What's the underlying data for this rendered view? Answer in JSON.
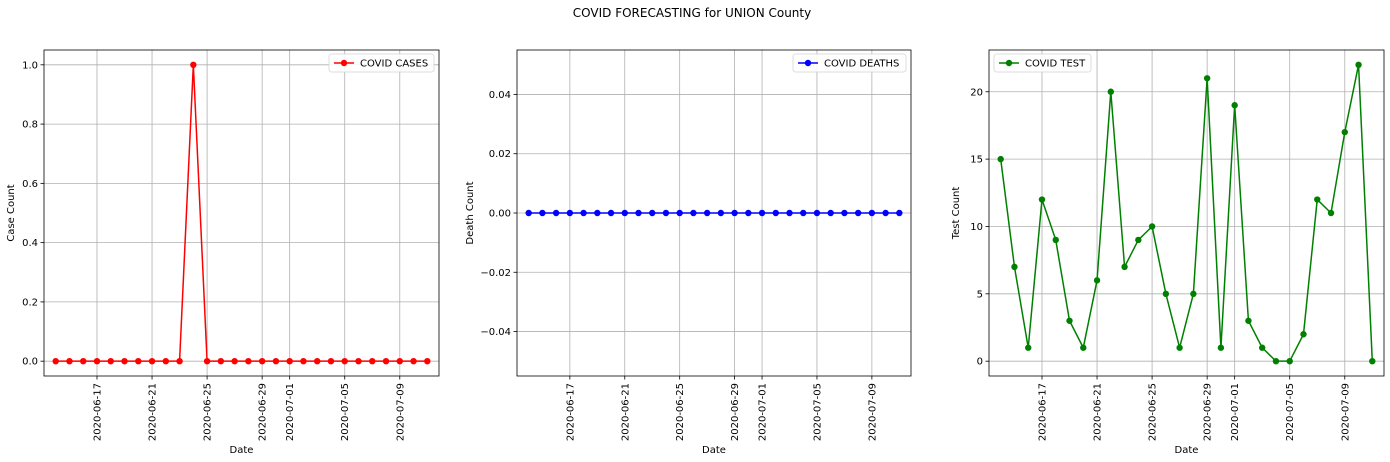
{
  "figure": {
    "title": "COVID FORECASTING for UNION County"
  },
  "chart_data": [
    {
      "type": "line",
      "xlabel": "Date",
      "ylabel": "Case Count",
      "x_tick_labels": [
        "2020-06-17",
        "2020-06-21",
        "2020-06-25",
        "2020-06-29",
        "2020-07-01",
        "2020-07-05",
        "2020-07-09"
      ],
      "x_tick_dates": [
        "2020-06-17",
        "2020-06-21",
        "2020-06-25",
        "2020-06-29",
        "2020-07-01",
        "2020-07-05",
        "2020-07-09"
      ],
      "x_start": "2020-06-14",
      "y_tick_labels": [
        "0.0",
        "0.2",
        "0.4",
        "0.6",
        "0.8",
        "1.0"
      ],
      "y_ticks": [
        0,
        0.2,
        0.4,
        0.6,
        0.8,
        1.0
      ],
      "ylim": [
        -0.05,
        1.05
      ],
      "grid": true,
      "legend_position": "upper right",
      "color": "#ff0000",
      "series": [
        {
          "name": "COVID CASES",
          "x": [
            "2020-06-14",
            "2020-06-15",
            "2020-06-16",
            "2020-06-17",
            "2020-06-18",
            "2020-06-19",
            "2020-06-20",
            "2020-06-21",
            "2020-06-22",
            "2020-06-23",
            "2020-06-24",
            "2020-06-25",
            "2020-06-26",
            "2020-06-27",
            "2020-06-28",
            "2020-06-29",
            "2020-06-30",
            "2020-07-01",
            "2020-07-02",
            "2020-07-03",
            "2020-07-04",
            "2020-07-05",
            "2020-07-06",
            "2020-07-07",
            "2020-07-08",
            "2020-07-09",
            "2020-07-10",
            "2020-07-11"
          ],
          "values": [
            0,
            0,
            0,
            0,
            0,
            0,
            0,
            0,
            0,
            0,
            1,
            0,
            0,
            0,
            0,
            0,
            0,
            0,
            0,
            0,
            0,
            0,
            0,
            0,
            0,
            0,
            0,
            0
          ]
        }
      ]
    },
    {
      "type": "line",
      "xlabel": "Date",
      "ylabel": "Death Count",
      "x_tick_labels": [
        "2020-06-17",
        "2020-06-21",
        "2020-06-25",
        "2020-06-29",
        "2020-07-01",
        "2020-07-05",
        "2020-07-09"
      ],
      "x_tick_dates": [
        "2020-06-17",
        "2020-06-21",
        "2020-06-25",
        "2020-06-29",
        "2020-07-01",
        "2020-07-05",
        "2020-07-09"
      ],
      "x_start": "2020-06-14",
      "y_tick_labels": [
        "0.04",
        "0.02",
        "0.00",
        "−0.02",
        "−0.04"
      ],
      "y_ticks": [
        0.04,
        0.02,
        0,
        -0.02,
        -0.04
      ],
      "ylim": [
        -0.055,
        0.055
      ],
      "grid": true,
      "legend_position": "upper right",
      "color": "#0000ff",
      "series": [
        {
          "name": "COVID DEATHS",
          "x": [
            "2020-06-14",
            "2020-06-15",
            "2020-06-16",
            "2020-06-17",
            "2020-06-18",
            "2020-06-19",
            "2020-06-20",
            "2020-06-21",
            "2020-06-22",
            "2020-06-23",
            "2020-06-24",
            "2020-06-25",
            "2020-06-26",
            "2020-06-27",
            "2020-06-28",
            "2020-06-29",
            "2020-06-30",
            "2020-07-01",
            "2020-07-02",
            "2020-07-03",
            "2020-07-04",
            "2020-07-05",
            "2020-07-06",
            "2020-07-07",
            "2020-07-08",
            "2020-07-09",
            "2020-07-10",
            "2020-07-11"
          ],
          "values": [
            0,
            0,
            0,
            0,
            0,
            0,
            0,
            0,
            0,
            0,
            0,
            0,
            0,
            0,
            0,
            0,
            0,
            0,
            0,
            0,
            0,
            0,
            0,
            0,
            0,
            0,
            0,
            0
          ]
        }
      ]
    },
    {
      "type": "line",
      "xlabel": "Date",
      "ylabel": "Test Count",
      "x_tick_labels": [
        "2020-06-17",
        "2020-06-21",
        "2020-06-25",
        "2020-06-29",
        "2020-07-01",
        "2020-07-05",
        "2020-07-09"
      ],
      "x_tick_dates": [
        "2020-06-17",
        "2020-06-21",
        "2020-06-25",
        "2020-06-29",
        "2020-07-01",
        "2020-07-05",
        "2020-07-09"
      ],
      "x_start": "2020-06-14",
      "y_tick_labels": [
        "0",
        "5",
        "10",
        "15",
        "20"
      ],
      "y_ticks": [
        0,
        5,
        10,
        15,
        20
      ],
      "ylim": [
        -1.1,
        23.1
      ],
      "grid": true,
      "legend_position": "upper left",
      "color": "#008000",
      "series": [
        {
          "name": "COVID TEST",
          "x": [
            "2020-06-14",
            "2020-06-15",
            "2020-06-16",
            "2020-06-17",
            "2020-06-18",
            "2020-06-19",
            "2020-06-20",
            "2020-06-21",
            "2020-06-22",
            "2020-06-23",
            "2020-06-24",
            "2020-06-25",
            "2020-06-26",
            "2020-06-27",
            "2020-06-28",
            "2020-06-29",
            "2020-06-30",
            "2020-07-01",
            "2020-07-02",
            "2020-07-03",
            "2020-07-04",
            "2020-07-05",
            "2020-07-06",
            "2020-07-07",
            "2020-07-08",
            "2020-07-09",
            "2020-07-10",
            "2020-07-11"
          ],
          "values": [
            15,
            7,
            1,
            12,
            9,
            3,
            1,
            6,
            20,
            7,
            9,
            10,
            5,
            1,
            5,
            21,
            1,
            19,
            3,
            1,
            0,
            0,
            2,
            12,
            11,
            17,
            22,
            0
          ]
        }
      ]
    }
  ]
}
